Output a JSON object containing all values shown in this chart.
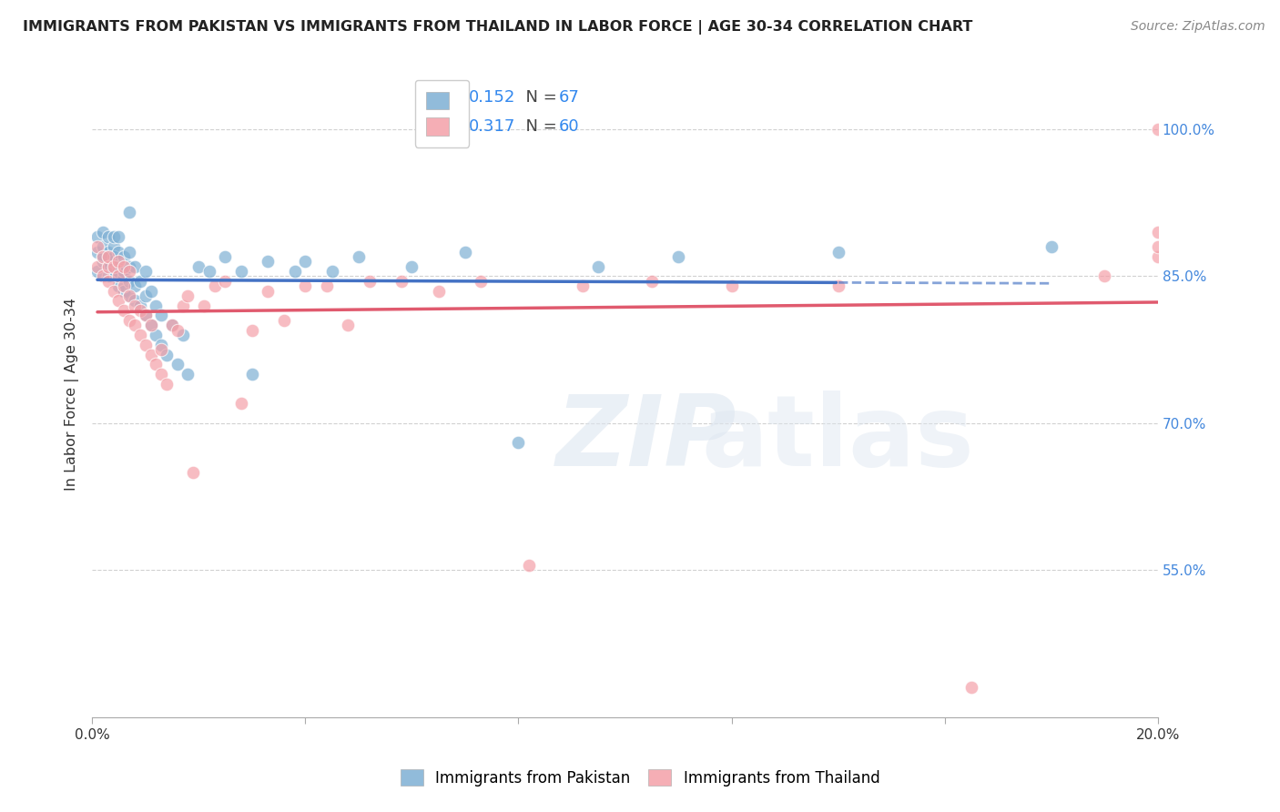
{
  "title": "IMMIGRANTS FROM PAKISTAN VS IMMIGRANTS FROM THAILAND IN LABOR FORCE | AGE 30-34 CORRELATION CHART",
  "source": "Source: ZipAtlas.com",
  "ylabel": "In Labor Force | Age 30-34",
  "xlim": [
    0.0,
    0.2
  ],
  "ylim": [
    0.4,
    1.06
  ],
  "x_ticks": [
    0.0,
    0.04,
    0.08,
    0.12,
    0.16,
    0.2
  ],
  "x_tick_labels": [
    "0.0%",
    "",
    "",
    "",
    "",
    "20.0%"
  ],
  "y_tick_labels_right": [
    "55.0%",
    "70.0%",
    "85.0%",
    "100.0%"
  ],
  "y_ticks_right": [
    0.55,
    0.7,
    0.85,
    1.0
  ],
  "R_pakistan": 0.152,
  "N_pakistan": 67,
  "R_thailand": 0.317,
  "N_thailand": 60,
  "blue_color": "#7EB0D4",
  "pink_color": "#F4A0A8",
  "blue_line_color": "#4472C4",
  "pink_line_color": "#E05A6E",
  "pakistan_x": [
    0.001,
    0.001,
    0.001,
    0.002,
    0.002,
    0.002,
    0.002,
    0.003,
    0.003,
    0.003,
    0.003,
    0.003,
    0.004,
    0.004,
    0.004,
    0.004,
    0.004,
    0.005,
    0.005,
    0.005,
    0.005,
    0.005,
    0.006,
    0.006,
    0.006,
    0.006,
    0.007,
    0.007,
    0.007,
    0.007,
    0.007,
    0.008,
    0.008,
    0.008,
    0.009,
    0.009,
    0.01,
    0.01,
    0.01,
    0.011,
    0.011,
    0.012,
    0.012,
    0.013,
    0.013,
    0.014,
    0.015,
    0.016,
    0.017,
    0.018,
    0.02,
    0.022,
    0.025,
    0.028,
    0.03,
    0.033,
    0.038,
    0.04,
    0.045,
    0.05,
    0.06,
    0.07,
    0.08,
    0.095,
    0.11,
    0.14,
    0.18
  ],
  "pakistan_y": [
    0.875,
    0.855,
    0.89,
    0.865,
    0.88,
    0.895,
    0.87,
    0.86,
    0.875,
    0.89,
    0.85,
    0.87,
    0.855,
    0.865,
    0.88,
    0.87,
    0.89,
    0.84,
    0.86,
    0.875,
    0.855,
    0.89,
    0.835,
    0.85,
    0.87,
    0.855,
    0.83,
    0.845,
    0.86,
    0.875,
    0.915,
    0.825,
    0.84,
    0.86,
    0.82,
    0.845,
    0.81,
    0.83,
    0.855,
    0.8,
    0.835,
    0.79,
    0.82,
    0.78,
    0.81,
    0.77,
    0.8,
    0.76,
    0.79,
    0.75,
    0.86,
    0.855,
    0.87,
    0.855,
    0.75,
    0.865,
    0.855,
    0.865,
    0.855,
    0.87,
    0.86,
    0.875,
    0.68,
    0.86,
    0.87,
    0.875,
    0.88
  ],
  "thailand_x": [
    0.001,
    0.001,
    0.002,
    0.002,
    0.003,
    0.003,
    0.003,
    0.004,
    0.004,
    0.005,
    0.005,
    0.005,
    0.006,
    0.006,
    0.006,
    0.007,
    0.007,
    0.007,
    0.008,
    0.008,
    0.009,
    0.009,
    0.01,
    0.01,
    0.011,
    0.011,
    0.012,
    0.013,
    0.013,
    0.014,
    0.015,
    0.016,
    0.017,
    0.018,
    0.019,
    0.021,
    0.023,
    0.025,
    0.028,
    0.03,
    0.033,
    0.036,
    0.04,
    0.044,
    0.048,
    0.052,
    0.058,
    0.065,
    0.073,
    0.082,
    0.092,
    0.105,
    0.12,
    0.14,
    0.165,
    0.19,
    0.2,
    0.2,
    0.2,
    0.2
  ],
  "thailand_y": [
    0.88,
    0.86,
    0.87,
    0.85,
    0.86,
    0.845,
    0.87,
    0.835,
    0.86,
    0.825,
    0.85,
    0.865,
    0.815,
    0.84,
    0.86,
    0.805,
    0.83,
    0.855,
    0.8,
    0.82,
    0.79,
    0.815,
    0.78,
    0.81,
    0.77,
    0.8,
    0.76,
    0.75,
    0.775,
    0.74,
    0.8,
    0.795,
    0.82,
    0.83,
    0.65,
    0.82,
    0.84,
    0.845,
    0.72,
    0.795,
    0.835,
    0.805,
    0.84,
    0.84,
    0.8,
    0.845,
    0.845,
    0.835,
    0.845,
    0.555,
    0.84,
    0.845,
    0.84,
    0.84,
    0.43,
    0.85,
    0.87,
    0.88,
    0.895,
    1.0
  ]
}
